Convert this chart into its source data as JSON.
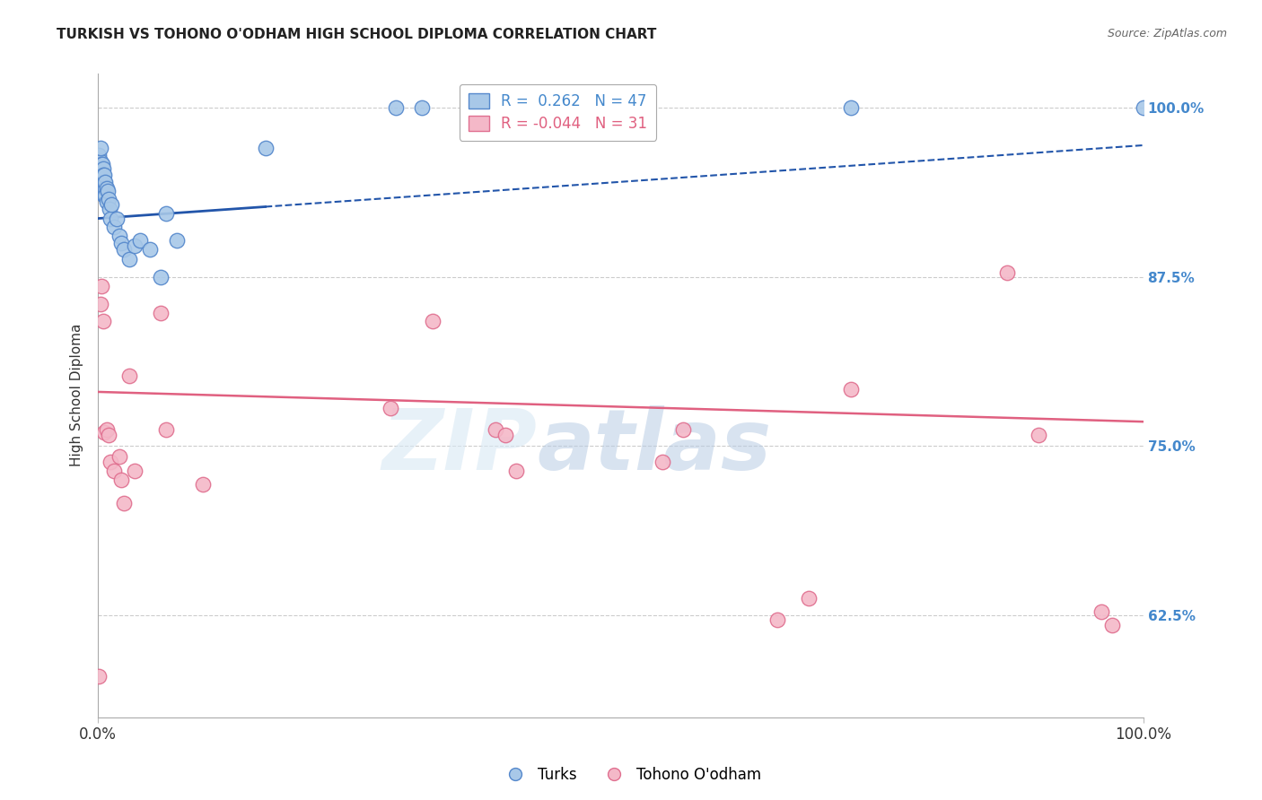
{
  "title": "TURKISH VS TOHONO O'ODHAM HIGH SCHOOL DIPLOMA CORRELATION CHART",
  "source": "Source: ZipAtlas.com",
  "xlabel": "",
  "ylabel": "High School Diploma",
  "watermark_zip": "ZIP",
  "watermark_atlas": "atlas",
  "legend_blue_label": "Turks",
  "legend_pink_label": "Tohono O'odham",
  "r_blue": 0.262,
  "n_blue": 47,
  "r_pink": -0.044,
  "n_pink": 31,
  "blue_dot_fill": "#a8c8e8",
  "blue_dot_edge": "#5588cc",
  "pink_dot_fill": "#f4b8c8",
  "pink_dot_edge": "#e07090",
  "blue_line_color": "#2255aa",
  "pink_line_color": "#e06080",
  "background_color": "#ffffff",
  "grid_color": "#cccccc",
  "right_tick_color": "#4488cc",
  "xmin": 0.0,
  "xmax": 1.0,
  "ymin": 0.55,
  "ymax": 1.025,
  "blue_dots_x": [
    0.001,
    0.001,
    0.002,
    0.002,
    0.002,
    0.003,
    0.003,
    0.003,
    0.003,
    0.004,
    0.004,
    0.004,
    0.005,
    0.005,
    0.005,
    0.005,
    0.006,
    0.006,
    0.006,
    0.007,
    0.007,
    0.007,
    0.008,
    0.008,
    0.009,
    0.01,
    0.011,
    0.012,
    0.013,
    0.015,
    0.018,
    0.02,
    0.022,
    0.025,
    0.03,
    0.035,
    0.04,
    0.05,
    0.06,
    0.065,
    0.075,
    0.16,
    0.285,
    0.31,
    0.36,
    0.72,
    1.0
  ],
  "blue_dots_y": [
    0.955,
    0.965,
    0.96,
    0.95,
    0.97,
    0.958,
    0.948,
    0.942,
    0.952,
    0.948,
    0.938,
    0.958,
    0.945,
    0.955,
    0.94,
    0.95,
    0.945,
    0.935,
    0.95,
    0.94,
    0.945,
    0.935,
    0.94,
    0.93,
    0.938,
    0.932,
    0.925,
    0.918,
    0.928,
    0.912,
    0.918,
    0.905,
    0.9,
    0.895,
    0.888,
    0.898,
    0.902,
    0.895,
    0.875,
    0.922,
    0.902,
    0.97,
    1.0,
    1.0,
    1.0,
    1.0,
    1.0
  ],
  "pink_dots_x": [
    0.001,
    0.002,
    0.003,
    0.005,
    0.006,
    0.008,
    0.01,
    0.012,
    0.015,
    0.02,
    0.022,
    0.025,
    0.03,
    0.035,
    0.06,
    0.1,
    0.28,
    0.38,
    0.39,
    0.54,
    0.56,
    0.65,
    0.68,
    0.72,
    0.87,
    0.9,
    0.96,
    0.97,
    0.4,
    0.32,
    0.065
  ],
  "pink_dots_y": [
    0.58,
    0.855,
    0.868,
    0.842,
    0.76,
    0.762,
    0.758,
    0.738,
    0.732,
    0.742,
    0.725,
    0.708,
    0.802,
    0.732,
    0.848,
    0.722,
    0.778,
    0.762,
    0.758,
    0.738,
    0.762,
    0.622,
    0.638,
    0.792,
    0.878,
    0.758,
    0.628,
    0.618,
    0.732,
    0.842,
    0.762
  ],
  "yticks": [
    0.625,
    0.75,
    0.875,
    1.0
  ],
  "ytick_labels": [
    "62.5%",
    "75.0%",
    "87.5%",
    "100.0%"
  ],
  "xtick_labels": [
    "0.0%",
    "100.0%"
  ],
  "blue_trend_x": [
    0.0,
    1.0
  ],
  "blue_trend_y_start": 0.918,
  "blue_trend_y_end": 0.972,
  "pink_trend_x": [
    0.0,
    1.0
  ],
  "pink_trend_y_start": 0.79,
  "pink_trend_y_end": 0.768
}
